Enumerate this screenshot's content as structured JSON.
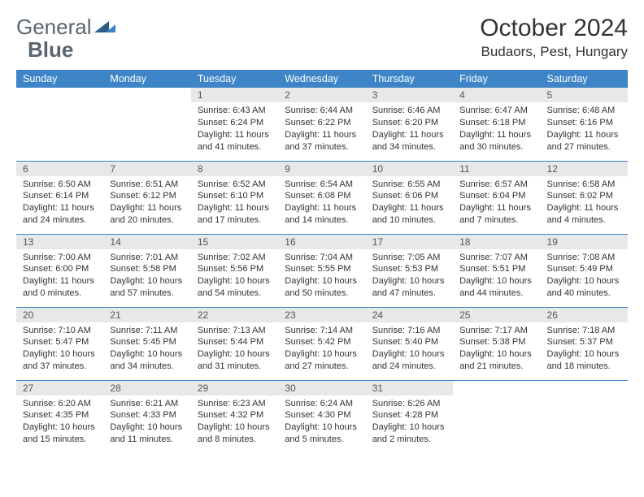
{
  "brand": {
    "part1": "General",
    "part2": "Blue"
  },
  "title": "October 2024",
  "location": "Budaors, Pest, Hungary",
  "colors": {
    "header_bg": "#3d85c6",
    "header_text": "#ffffff",
    "daynum_bg": "#e8e8e8",
    "daynum_text": "#555555",
    "body_text": "#333333",
    "row_border": "#3d85c6",
    "logo_gray": "#5a6570",
    "logo_blue_dark": "#2a5d8a",
    "logo_blue_light": "#3d85c6"
  },
  "weekdays": [
    "Sunday",
    "Monday",
    "Tuesday",
    "Wednesday",
    "Thursday",
    "Friday",
    "Saturday"
  ],
  "weeks": [
    [
      {
        "empty": true
      },
      {
        "empty": true
      },
      {
        "n": "1",
        "sr": "Sunrise: 6:43 AM",
        "ss": "Sunset: 6:24 PM",
        "dl": "Daylight: 11 hours and 41 minutes."
      },
      {
        "n": "2",
        "sr": "Sunrise: 6:44 AM",
        "ss": "Sunset: 6:22 PM",
        "dl": "Daylight: 11 hours and 37 minutes."
      },
      {
        "n": "3",
        "sr": "Sunrise: 6:46 AM",
        "ss": "Sunset: 6:20 PM",
        "dl": "Daylight: 11 hours and 34 minutes."
      },
      {
        "n": "4",
        "sr": "Sunrise: 6:47 AM",
        "ss": "Sunset: 6:18 PM",
        "dl": "Daylight: 11 hours and 30 minutes."
      },
      {
        "n": "5",
        "sr": "Sunrise: 6:48 AM",
        "ss": "Sunset: 6:16 PM",
        "dl": "Daylight: 11 hours and 27 minutes."
      }
    ],
    [
      {
        "n": "6",
        "sr": "Sunrise: 6:50 AM",
        "ss": "Sunset: 6:14 PM",
        "dl": "Daylight: 11 hours and 24 minutes."
      },
      {
        "n": "7",
        "sr": "Sunrise: 6:51 AM",
        "ss": "Sunset: 6:12 PM",
        "dl": "Daylight: 11 hours and 20 minutes."
      },
      {
        "n": "8",
        "sr": "Sunrise: 6:52 AM",
        "ss": "Sunset: 6:10 PM",
        "dl": "Daylight: 11 hours and 17 minutes."
      },
      {
        "n": "9",
        "sr": "Sunrise: 6:54 AM",
        "ss": "Sunset: 6:08 PM",
        "dl": "Daylight: 11 hours and 14 minutes."
      },
      {
        "n": "10",
        "sr": "Sunrise: 6:55 AM",
        "ss": "Sunset: 6:06 PM",
        "dl": "Daylight: 11 hours and 10 minutes."
      },
      {
        "n": "11",
        "sr": "Sunrise: 6:57 AM",
        "ss": "Sunset: 6:04 PM",
        "dl": "Daylight: 11 hours and 7 minutes."
      },
      {
        "n": "12",
        "sr": "Sunrise: 6:58 AM",
        "ss": "Sunset: 6:02 PM",
        "dl": "Daylight: 11 hours and 4 minutes."
      }
    ],
    [
      {
        "n": "13",
        "sr": "Sunrise: 7:00 AM",
        "ss": "Sunset: 6:00 PM",
        "dl": "Daylight: 11 hours and 0 minutes."
      },
      {
        "n": "14",
        "sr": "Sunrise: 7:01 AM",
        "ss": "Sunset: 5:58 PM",
        "dl": "Daylight: 10 hours and 57 minutes."
      },
      {
        "n": "15",
        "sr": "Sunrise: 7:02 AM",
        "ss": "Sunset: 5:56 PM",
        "dl": "Daylight: 10 hours and 54 minutes."
      },
      {
        "n": "16",
        "sr": "Sunrise: 7:04 AM",
        "ss": "Sunset: 5:55 PM",
        "dl": "Daylight: 10 hours and 50 minutes."
      },
      {
        "n": "17",
        "sr": "Sunrise: 7:05 AM",
        "ss": "Sunset: 5:53 PM",
        "dl": "Daylight: 10 hours and 47 minutes."
      },
      {
        "n": "18",
        "sr": "Sunrise: 7:07 AM",
        "ss": "Sunset: 5:51 PM",
        "dl": "Daylight: 10 hours and 44 minutes."
      },
      {
        "n": "19",
        "sr": "Sunrise: 7:08 AM",
        "ss": "Sunset: 5:49 PM",
        "dl": "Daylight: 10 hours and 40 minutes."
      }
    ],
    [
      {
        "n": "20",
        "sr": "Sunrise: 7:10 AM",
        "ss": "Sunset: 5:47 PM",
        "dl": "Daylight: 10 hours and 37 minutes."
      },
      {
        "n": "21",
        "sr": "Sunrise: 7:11 AM",
        "ss": "Sunset: 5:45 PM",
        "dl": "Daylight: 10 hours and 34 minutes."
      },
      {
        "n": "22",
        "sr": "Sunrise: 7:13 AM",
        "ss": "Sunset: 5:44 PM",
        "dl": "Daylight: 10 hours and 31 minutes."
      },
      {
        "n": "23",
        "sr": "Sunrise: 7:14 AM",
        "ss": "Sunset: 5:42 PM",
        "dl": "Daylight: 10 hours and 27 minutes."
      },
      {
        "n": "24",
        "sr": "Sunrise: 7:16 AM",
        "ss": "Sunset: 5:40 PM",
        "dl": "Daylight: 10 hours and 24 minutes."
      },
      {
        "n": "25",
        "sr": "Sunrise: 7:17 AM",
        "ss": "Sunset: 5:38 PM",
        "dl": "Daylight: 10 hours and 21 minutes."
      },
      {
        "n": "26",
        "sr": "Sunrise: 7:18 AM",
        "ss": "Sunset: 5:37 PM",
        "dl": "Daylight: 10 hours and 18 minutes."
      }
    ],
    [
      {
        "n": "27",
        "sr": "Sunrise: 6:20 AM",
        "ss": "Sunset: 4:35 PM",
        "dl": "Daylight: 10 hours and 15 minutes."
      },
      {
        "n": "28",
        "sr": "Sunrise: 6:21 AM",
        "ss": "Sunset: 4:33 PM",
        "dl": "Daylight: 10 hours and 11 minutes."
      },
      {
        "n": "29",
        "sr": "Sunrise: 6:23 AM",
        "ss": "Sunset: 4:32 PM",
        "dl": "Daylight: 10 hours and 8 minutes."
      },
      {
        "n": "30",
        "sr": "Sunrise: 6:24 AM",
        "ss": "Sunset: 4:30 PM",
        "dl": "Daylight: 10 hours and 5 minutes."
      },
      {
        "n": "31",
        "sr": "Sunrise: 6:26 AM",
        "ss": "Sunset: 4:28 PM",
        "dl": "Daylight: 10 hours and 2 minutes."
      },
      {
        "empty": true
      },
      {
        "empty": true
      }
    ]
  ]
}
